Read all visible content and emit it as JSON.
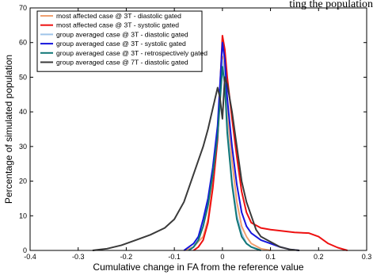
{
  "chart_data": {
    "type": "line",
    "title": "",
    "title_partial_visible": "ting the population",
    "xlabel": "Cumulative change in FA from the reference value",
    "ylabel": "Percentage of simulated population",
    "xlim": [
      -0.4,
      0.3
    ],
    "ylim": [
      0,
      70
    ],
    "xticks": [
      -0.4,
      -0.3,
      -0.2,
      -0.1,
      0,
      0.1,
      0.2,
      0.3
    ],
    "yticks": [
      0,
      10,
      20,
      30,
      40,
      50,
      60,
      70
    ],
    "xtick_labels": [
      "-0.4",
      "-0.3",
      "-0.2",
      "-0.1",
      "0",
      "0.1",
      "0.2",
      "0.3"
    ],
    "ytick_labels": [
      "0",
      "10",
      "20",
      "30",
      "40",
      "50",
      "60",
      "70"
    ],
    "grid": false,
    "legend_position": "top-left",
    "series": [
      {
        "name": "most affected case @ 3T - diastolic gated",
        "color": "#f0a070",
        "points": [
          [
            -0.08,
            0
          ],
          [
            -0.06,
            1
          ],
          [
            -0.04,
            4
          ],
          [
            -0.03,
            9
          ],
          [
            -0.02,
            19
          ],
          [
            -0.01,
            34
          ],
          [
            0,
            56
          ],
          [
            0.005,
            52
          ],
          [
            0.01,
            40
          ],
          [
            0.02,
            26
          ],
          [
            0.03,
            14
          ],
          [
            0.04,
            7
          ],
          [
            0.05,
            4
          ],
          [
            0.06,
            2
          ],
          [
            0.08,
            0.5
          ],
          [
            0.1,
            0
          ]
        ]
      },
      {
        "name": "most affected case @ 3T - systolic gated",
        "color": "#ee1111",
        "points": [
          [
            -0.06,
            0
          ],
          [
            -0.05,
            1
          ],
          [
            -0.04,
            3
          ],
          [
            -0.03,
            8
          ],
          [
            -0.02,
            18
          ],
          [
            -0.01,
            32
          ],
          [
            0,
            62
          ],
          [
            0.005,
            58
          ],
          [
            0.01,
            50
          ],
          [
            0.02,
            38
          ],
          [
            0.03,
            27
          ],
          [
            0.04,
            17
          ],
          [
            0.05,
            11
          ],
          [
            0.06,
            8
          ],
          [
            0.08,
            6.5
          ],
          [
            0.1,
            6
          ],
          [
            0.12,
            5.7
          ],
          [
            0.15,
            5.2
          ],
          [
            0.18,
            5
          ],
          [
            0.2,
            4
          ],
          [
            0.22,
            2
          ],
          [
            0.24,
            0.8
          ],
          [
            0.26,
            0
          ]
        ]
      },
      {
        "name": "group averaged case @ 3T - diastolic gated",
        "color": "#9fc4e8",
        "points": [
          [
            -0.07,
            0
          ],
          [
            -0.06,
            1
          ],
          [
            -0.05,
            3
          ],
          [
            -0.04,
            7
          ],
          [
            -0.03,
            13
          ],
          [
            -0.02,
            22
          ],
          [
            -0.01,
            34
          ],
          [
            0,
            55
          ],
          [
            0.005,
            50
          ],
          [
            0.01,
            36
          ],
          [
            0.02,
            20
          ],
          [
            0.03,
            10
          ],
          [
            0.04,
            5
          ],
          [
            0.05,
            2
          ],
          [
            0.06,
            1
          ],
          [
            0.08,
            0
          ]
        ]
      },
      {
        "name": "group averaged case @ 3T - systolic gated",
        "color": "#1515dd",
        "points": [
          [
            -0.08,
            0
          ],
          [
            -0.06,
            2
          ],
          [
            -0.05,
            4
          ],
          [
            -0.04,
            9
          ],
          [
            -0.03,
            15
          ],
          [
            -0.02,
            24
          ],
          [
            -0.01,
            36
          ],
          [
            0,
            60
          ],
          [
            0.005,
            55
          ],
          [
            0.01,
            44
          ],
          [
            0.02,
            30
          ],
          [
            0.03,
            19
          ],
          [
            0.04,
            11
          ],
          [
            0.05,
            7
          ],
          [
            0.06,
            5
          ],
          [
            0.08,
            3
          ],
          [
            0.1,
            2
          ],
          [
            0.12,
            1
          ],
          [
            0.14,
            0.3
          ],
          [
            0.16,
            0
          ]
        ]
      },
      {
        "name": "group averaged case @ 3T - retrospectively gated",
        "color": "#117777",
        "points": [
          [
            -0.07,
            0
          ],
          [
            -0.06,
            1
          ],
          [
            -0.05,
            3
          ],
          [
            -0.04,
            7
          ],
          [
            -0.03,
            13
          ],
          [
            -0.02,
            22
          ],
          [
            -0.01,
            33
          ],
          [
            0,
            53
          ],
          [
            0.005,
            48
          ],
          [
            0.01,
            34
          ],
          [
            0.02,
            19
          ],
          [
            0.03,
            9
          ],
          [
            0.04,
            4
          ],
          [
            0.05,
            2
          ],
          [
            0.06,
            1
          ],
          [
            0.08,
            0
          ]
        ]
      },
      {
        "name": "group averaged case @ 7T - diastolic gated",
        "color": "#3a3a3a",
        "points": [
          [
            -0.27,
            0
          ],
          [
            -0.24,
            0.5
          ],
          [
            -0.21,
            1.5
          ],
          [
            -0.18,
            3
          ],
          [
            -0.15,
            4.5
          ],
          [
            -0.12,
            6.5
          ],
          [
            -0.1,
            9
          ],
          [
            -0.08,
            14
          ],
          [
            -0.07,
            18
          ],
          [
            -0.06,
            22
          ],
          [
            -0.05,
            26
          ],
          [
            -0.04,
            30
          ],
          [
            -0.03,
            35
          ],
          [
            -0.02,
            41
          ],
          [
            -0.01,
            47
          ],
          [
            -0.005,
            44
          ],
          [
            0,
            38
          ],
          [
            0.005,
            50
          ],
          [
            0.01,
            48
          ],
          [
            0.02,
            40
          ],
          [
            0.03,
            30
          ],
          [
            0.04,
            20
          ],
          [
            0.05,
            14
          ],
          [
            0.06,
            10
          ],
          [
            0.07,
            6
          ],
          [
            0.08,
            4
          ],
          [
            0.1,
            2.5
          ],
          [
            0.12,
            1
          ],
          [
            0.14,
            0.3
          ],
          [
            0.16,
            0
          ]
        ]
      }
    ]
  }
}
